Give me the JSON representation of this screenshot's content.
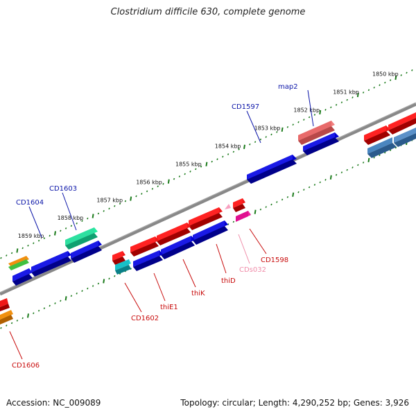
{
  "title": "Clostridium difficile 630, complete genome",
  "accession": "Accession: NC_009089",
  "summary": "Topology: circular; Length: 4,290,252 bp; Genes: 3,926",
  "ruler_ticks": [
    "1850 kbp",
    "1851 kbp",
    "1852 kbp",
    "1853 kbp",
    "1854 kbp",
    "1855 kbp",
    "1856 kbp",
    "1857 kbp",
    "1858 kbp",
    "1859 kbp"
  ],
  "colors": {
    "backbone": "#808080",
    "ruler": "#1a7a1a",
    "forward_label": "#0a14a8",
    "reverse_label": "#c80a0a",
    "ncrna_label": "#f08ca8"
  },
  "gene_labels": {
    "map2": "map2",
    "cd1597": "CD1597",
    "cd1603": "CD1603",
    "cd1604": "CD1604",
    "cd1598": "CD1598",
    "cds032": "CDs032",
    "thid": "thiD",
    "thik": "thiK",
    "thie1": "thiE1",
    "cd1602": "CD1602",
    "cd1606": "CD1606"
  }
}
